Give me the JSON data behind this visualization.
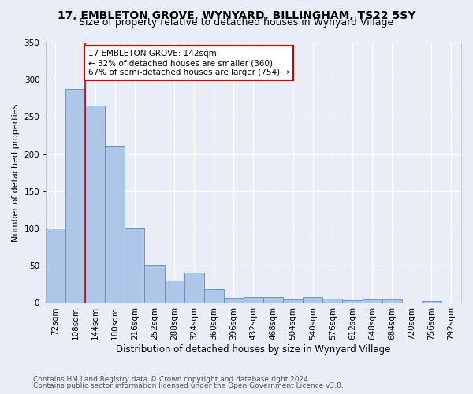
{
  "title": "17, EMBLETON GROVE, WYNYARD, BILLINGHAM, TS22 5SY",
  "subtitle": "Size of property relative to detached houses in Wynyard Village",
  "xlabel": "Distribution of detached houses by size in Wynyard Village",
  "ylabel": "Number of detached properties",
  "footnote1": "Contains HM Land Registry data © Crown copyright and database right 2024.",
  "footnote2": "Contains public sector information licensed under the Open Government Licence v3.0.",
  "bar_labels": [
    "72sqm",
    "108sqm",
    "144sqm",
    "180sqm",
    "216sqm",
    "252sqm",
    "288sqm",
    "324sqm",
    "360sqm",
    "396sqm",
    "432sqm",
    "468sqm",
    "504sqm",
    "540sqm",
    "576sqm",
    "612sqm",
    "648sqm",
    "684sqm",
    "720sqm",
    "756sqm",
    "792sqm"
  ],
  "bar_values": [
    100,
    287,
    265,
    211,
    101,
    51,
    30,
    41,
    19,
    7,
    8,
    8,
    5,
    8,
    6,
    4,
    5,
    5,
    1,
    3,
    1
  ],
  "bar_color": "#aec6e8",
  "bar_edge_color": "#5b8db8",
  "background_color": "#e8edf8",
  "grid_color": "#ffffff",
  "marker_line_color": "#cc0000",
  "annotation_text": "17 EMBLETON GROVE: 142sqm\n← 32% of detached houses are smaller (360)\n67% of semi-detached houses are larger (754) →",
  "annotation_box_color": "#ffffff",
  "annotation_box_edge_color": "#cc0000",
  "ylim": [
    0,
    350
  ],
  "yticks": [
    0,
    50,
    100,
    150,
    200,
    250,
    300,
    350
  ],
  "title_fontsize": 10,
  "subtitle_fontsize": 9,
  "xlabel_fontsize": 8.5,
  "ylabel_fontsize": 8,
  "tick_fontsize": 7.5,
  "annotation_fontsize": 7.5,
  "footnote_fontsize": 6.5
}
